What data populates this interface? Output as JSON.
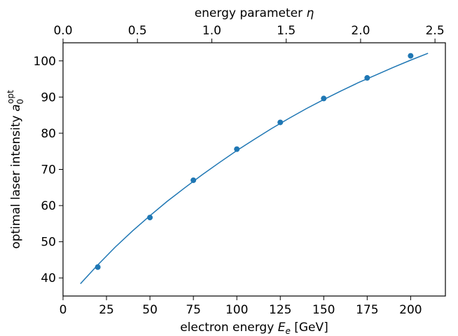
{
  "chart_data": {
    "type": "scatter",
    "xlabel": "electron energy",
    "xlabel_symbol": "E",
    "xlabel_symbol_sub": "e",
    "xlabel_unit": "[GeV]",
    "ylabel": "optimal laser intensity",
    "ylabel_symbol": "a",
    "ylabel_sub": "0",
    "ylabel_sup": "opt",
    "top_xlabel": "energy parameter",
    "top_xlabel_symbol": "η",
    "xlim": [
      0,
      220
    ],
    "ylim": [
      35,
      105
    ],
    "top_xlim": [
      0.0,
      2.57
    ],
    "xticks": [
      0,
      25,
      50,
      75,
      100,
      125,
      150,
      175,
      200
    ],
    "yticks": [
      40,
      50,
      60,
      70,
      80,
      90,
      100
    ],
    "top_xticks": [
      0.0,
      0.5,
      1.0,
      1.5,
      2.0,
      2.5
    ],
    "top_xtick_labels": [
      "0.0",
      "0.5",
      "1.0",
      "1.5",
      "2.0",
      "2.5"
    ],
    "points": {
      "x": [
        20,
        50,
        75,
        100,
        125,
        150,
        175,
        200
      ],
      "y": [
        43.0,
        56.7,
        67.0,
        75.6,
        83.0,
        89.6,
        95.3,
        101.4
      ]
    },
    "fit_line": {
      "x": [
        10,
        20,
        30,
        40,
        50,
        60,
        70,
        80,
        90,
        100,
        110,
        120,
        130,
        140,
        150,
        160,
        170,
        180,
        190,
        200,
        210
      ],
      "y": [
        38.4,
        43.6,
        48.5,
        53.0,
        57.2,
        61.2,
        64.9,
        68.5,
        71.9,
        75.2,
        78.3,
        81.3,
        84.1,
        86.8,
        89.3,
        91.7,
        94.0,
        96.1,
        98.2,
        100.2,
        102.1
      ]
    },
    "grid": false,
    "colors": {
      "series": "#1f77b4",
      "axes": "#000000"
    }
  }
}
